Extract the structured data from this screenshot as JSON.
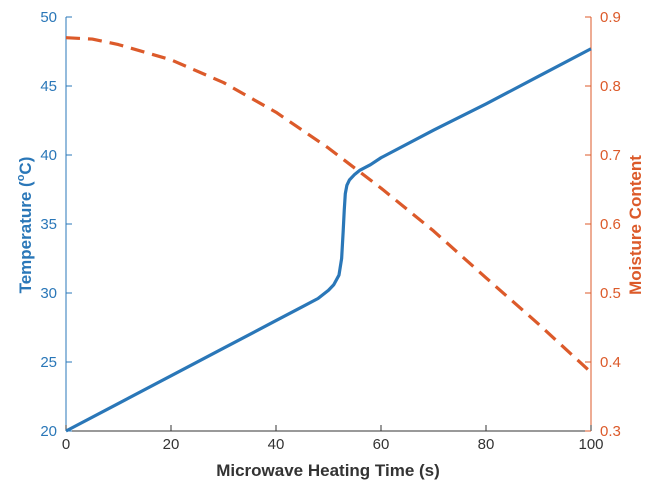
{
  "chart_data": {
    "type": "line",
    "xlabel": "Microwave Heating Time (s)",
    "ylabel_left_prefix": "Temperature (",
    "ylabel_left_sup": "o",
    "ylabel_left_suffix": "C)",
    "ylabel_right": "Moisture Content",
    "xlim": [
      0,
      100
    ],
    "ylim_left": [
      20,
      50
    ],
    "ylim_right": [
      0.3,
      0.9
    ],
    "x_ticks": [
      "0",
      "20",
      "40",
      "60",
      "80",
      "100"
    ],
    "y_left_ticks": [
      "20",
      "25",
      "30",
      "35",
      "40",
      "45",
      "50"
    ],
    "y_right_ticks": [
      "0.3",
      "0.4",
      "0.5",
      "0.6",
      "0.7",
      "0.8",
      "0.9"
    ],
    "grid": false,
    "colors": {
      "left": "#2a77b8",
      "right": "#dc5a2a",
      "axis": "#333333"
    },
    "series": [
      {
        "axis": "left",
        "style": "solid",
        "x": [
          0,
          10,
          20,
          30,
          40,
          45,
          48,
          50,
          51,
          52,
          52.5,
          52.8,
          53,
          53.2,
          53.5,
          54,
          55,
          56,
          58,
          60,
          70,
          80,
          90,
          100
        ],
        "y": [
          20,
          22,
          24,
          26,
          28,
          29,
          29.6,
          30.2,
          30.6,
          31.3,
          32.5,
          34.5,
          36,
          37.2,
          37.8,
          38.2,
          38.6,
          38.9,
          39.3,
          39.8,
          41.8,
          43.7,
          45.7,
          47.7
        ]
      },
      {
        "axis": "right",
        "style": "dashed",
        "x": [
          0,
          5,
          10,
          20,
          30,
          40,
          50,
          60,
          70,
          80,
          90,
          100
        ],
        "y": [
          0.87,
          0.868,
          0.86,
          0.838,
          0.805,
          0.762,
          0.71,
          0.652,
          0.59,
          0.522,
          0.455,
          0.385
        ]
      }
    ]
  }
}
